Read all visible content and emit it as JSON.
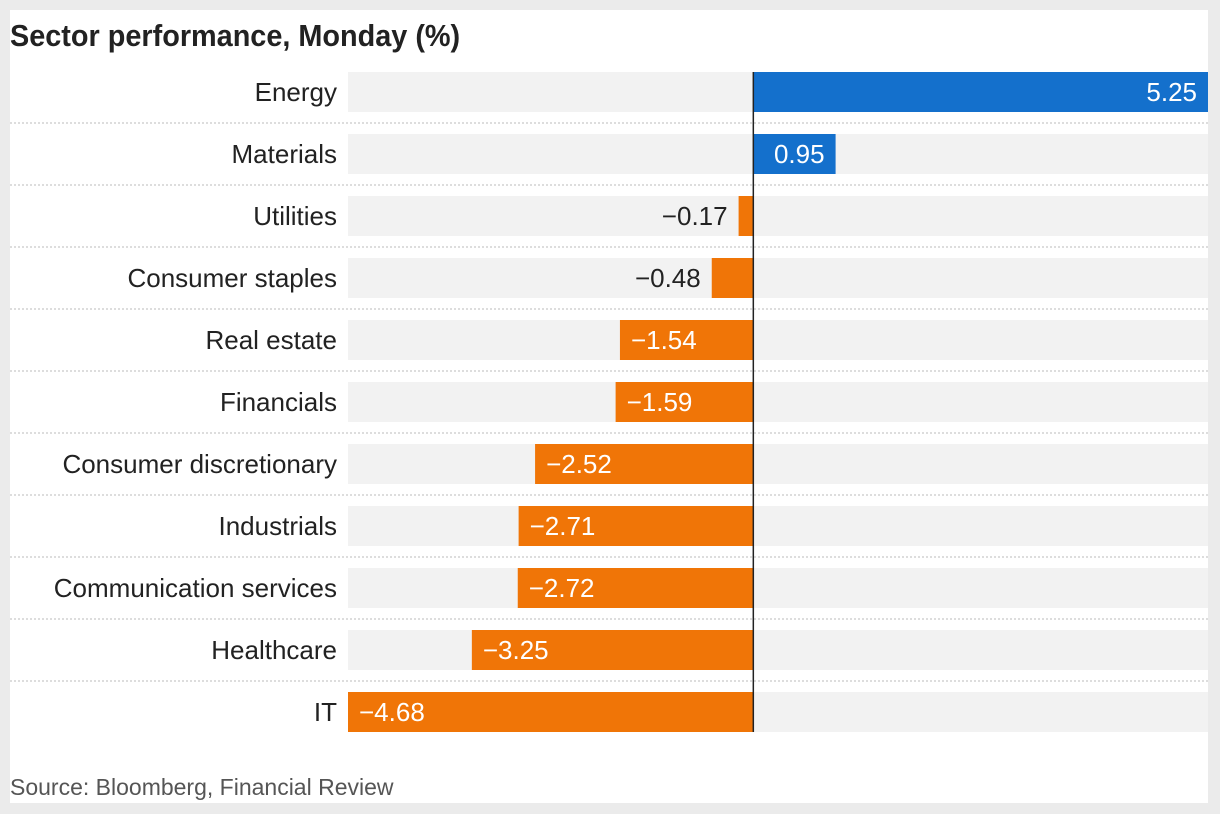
{
  "chart_data": {
    "type": "bar",
    "orientation": "horizontal",
    "title": "Sector performance, Monday (%)",
    "source": "Source: Bloomberg, Financial Review",
    "categories": [
      "Energy",
      "Materials",
      "Utilities",
      "Consumer staples",
      "Real estate",
      "Financials",
      "Consumer discretionary",
      "Industrials",
      "Communication services",
      "Healthcare",
      "IT"
    ],
    "values": [
      5.25,
      0.95,
      -0.17,
      -0.48,
      -1.54,
      -1.59,
      -2.52,
      -2.71,
      -2.72,
      -3.25,
      -4.68
    ],
    "value_labels": [
      "5.25",
      "0.95",
      "−0.17",
      "−0.48",
      "−1.54",
      "−1.59",
      "−2.52",
      "−2.71",
      "−2.72",
      "−3.25",
      "−4.68"
    ],
    "xlim": [
      -4.68,
      5.25
    ],
    "grid": false,
    "legend": "none",
    "colors": {
      "positive": "#1470cc",
      "negative": "#f07507",
      "track": "#f2f2f2",
      "axis": "#222222",
      "separator": "#bbbbbb"
    }
  }
}
